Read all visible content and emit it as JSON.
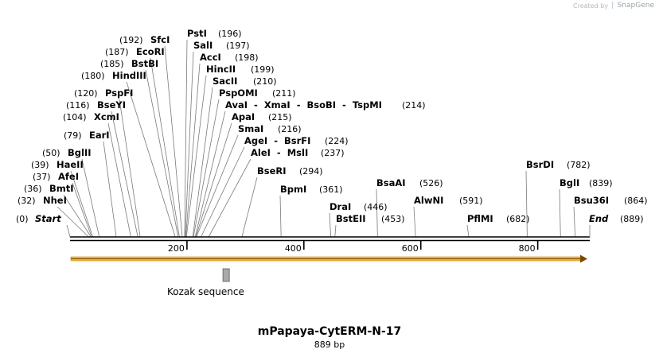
{
  "brand": {
    "created_by": "Created by",
    "name": "SnapGene",
    "logo_icon": "snapgene-leaf-icon"
  },
  "map": {
    "title": "mPapaya-CytERM-N-17",
    "length_label": "889 bp",
    "length": 889,
    "start_label": "Start",
    "start_pos": "(0)",
    "end_label": "End",
    "end_pos": "(889)",
    "ticks": [
      {
        "value": 200,
        "label": "200"
      },
      {
        "value": 400,
        "label": "400"
      },
      {
        "value": 600,
        "label": "600"
      },
      {
        "value": 800,
        "label": "800"
      }
    ],
    "sites": [
      {
        "name": "NheI",
        "pos_label": "(32)",
        "pos": 32
      },
      {
        "name": "BmtI",
        "pos_label": "(36)",
        "pos": 36
      },
      {
        "name": "AfeI",
        "pos_label": "(37)",
        "pos": 37
      },
      {
        "name": "HaeII",
        "pos_label": "(39)",
        "pos": 39
      },
      {
        "name": "BglII",
        "pos_label": "(50)",
        "pos": 50
      },
      {
        "name": "EarI",
        "pos_label": "(79)",
        "pos": 79
      },
      {
        "name": "XcmI",
        "pos_label": "(104)",
        "pos": 104
      },
      {
        "name": "BseYI",
        "pos_label": "(116)",
        "pos": 116
      },
      {
        "name": "PspFI",
        "pos_label": "(120)",
        "pos": 120
      },
      {
        "name": "HindIII",
        "pos_label": "(180)",
        "pos": 180
      },
      {
        "name": "BstBI",
        "pos_label": "(185)",
        "pos": 185
      },
      {
        "name": "EcoRI",
        "pos_label": "(187)",
        "pos": 187
      },
      {
        "name": "SfcI",
        "pos_label": "(192)",
        "pos": 192
      },
      {
        "name": "PstI",
        "pos_label": "(196)",
        "pos": 196
      },
      {
        "name": "SalI",
        "pos_label": "(197)",
        "pos": 197
      },
      {
        "name": "AccI",
        "pos_label": "(198)",
        "pos": 198
      },
      {
        "name": "HincII",
        "pos_label": "(199)",
        "pos": 199
      },
      {
        "name": "SacII",
        "pos_label": "(210)",
        "pos": 210
      },
      {
        "name": "PspOMI",
        "pos_label": "(211)",
        "pos": 211
      },
      {
        "name": "AvaI  -  XmaI  -  BsoBI  -  TspMI",
        "pos_label": "(214)",
        "pos": 214
      },
      {
        "name": "ApaI",
        "pos_label": "(215)",
        "pos": 215
      },
      {
        "name": "SmaI",
        "pos_label": "(216)",
        "pos": 216
      },
      {
        "name": "AgeI  -  BsrFI",
        "pos_label": "(224)",
        "pos": 224
      },
      {
        "name": "AleI  -  MslI",
        "pos_label": "(237)",
        "pos": 237
      },
      {
        "name": "BseRI",
        "pos_label": "(294)",
        "pos": 294
      },
      {
        "name": "BpmI",
        "pos_label": "(361)",
        "pos": 361
      },
      {
        "name": "DraI",
        "pos_label": "(446)",
        "pos": 446
      },
      {
        "name": "BstEII",
        "pos_label": "(453)",
        "pos": 453
      },
      {
        "name": "BsaAI",
        "pos_label": "(526)",
        "pos": 526
      },
      {
        "name": "AlwNI",
        "pos_label": "(591)",
        "pos": 591
      },
      {
        "name": "PflMI",
        "pos_label": "(682)",
        "pos": 682
      },
      {
        "name": "BsrDI",
        "pos_label": "(782)",
        "pos": 782
      },
      {
        "name": "BglI",
        "pos_label": "(839)",
        "pos": 839
      },
      {
        "name": "Bsu36I",
        "pos_label": "(864)",
        "pos": 864
      }
    ],
    "features": [
      {
        "name": "Kozak sequence",
        "start": 237,
        "end": 248,
        "color": "#a9a9a9"
      }
    ],
    "orf": {
      "start": 0,
      "end": 889,
      "color": "#f0b642"
    }
  }
}
